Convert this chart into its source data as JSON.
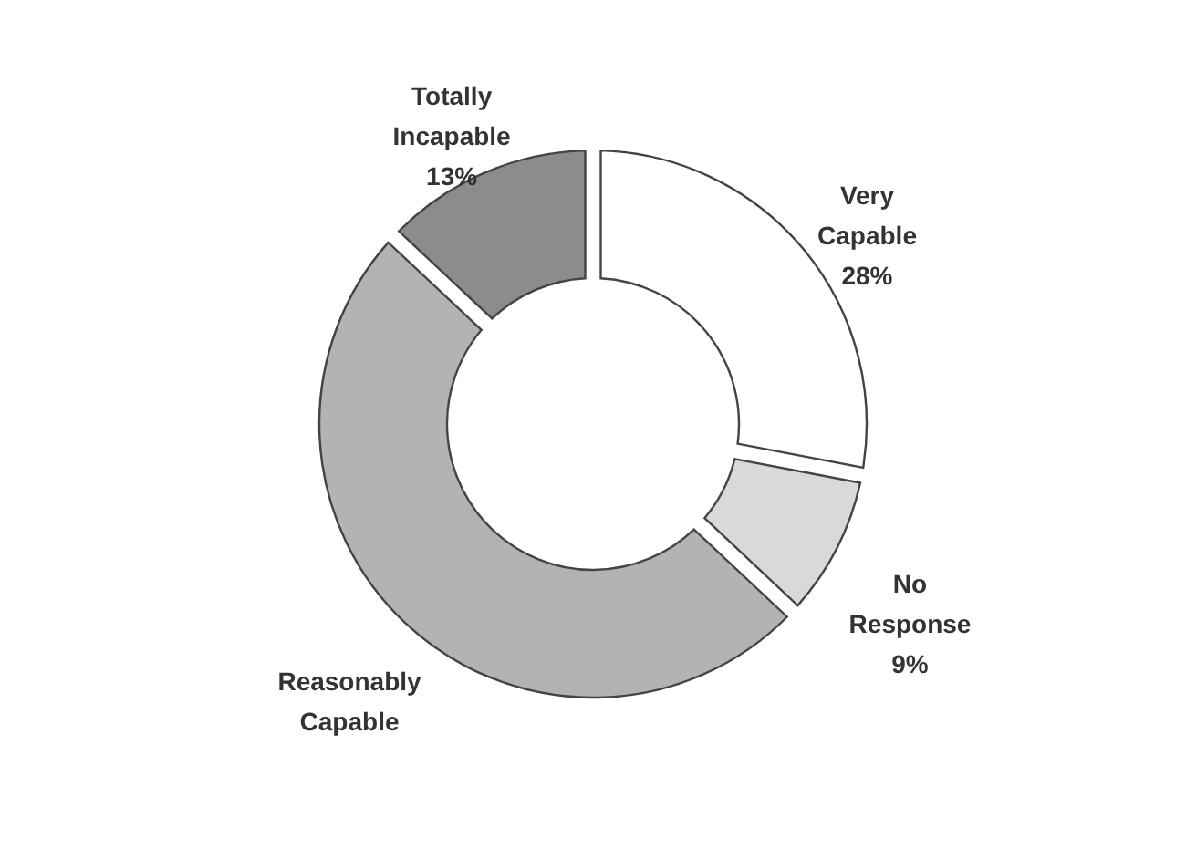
{
  "chart_data": {
    "type": "donut",
    "categories": [
      "Very Capable",
      "No Response",
      "Reasonably Capable",
      "Totally Incapable"
    ],
    "values": [
      28,
      9,
      50,
      13
    ],
    "value_labels": [
      "28%",
      "9%",
      null,
      "13%"
    ],
    "colors": [
      "#ffffff",
      "#d9d9d9",
      "#b3b3b3",
      "#8c8c8c"
    ]
  }
}
